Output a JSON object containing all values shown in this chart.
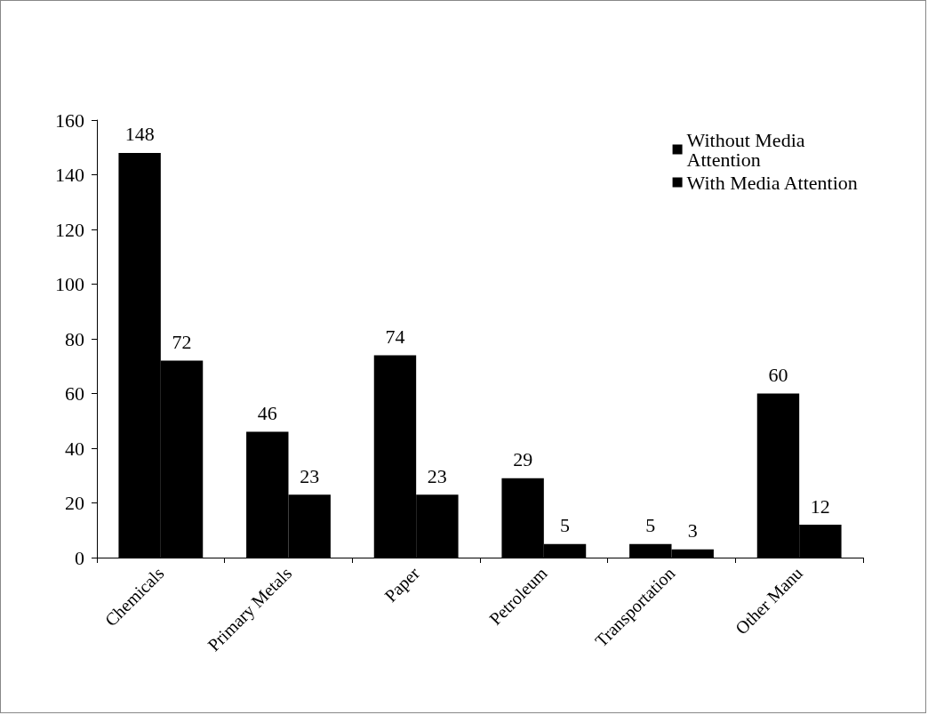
{
  "chart_data": {
    "type": "bar",
    "categories": [
      "Chemicals",
      "Primary Metals",
      "Paper",
      "Petroleum",
      "Transportation",
      "Other Manu"
    ],
    "series": [
      {
        "name": "Without Media Attention",
        "color": "#000000",
        "values": [
          148,
          46,
          74,
          29,
          5,
          60
        ]
      },
      {
        "name": "With Media Attention",
        "color": "#000000",
        "values": [
          72,
          23,
          23,
          5,
          3,
          12
        ]
      }
    ],
    "ylim": [
      0,
      160
    ],
    "yticks": [
      0,
      20,
      40,
      60,
      80,
      100,
      120,
      140,
      160
    ],
    "grid": false,
    "legend": "top right",
    "data_labels": true
  }
}
